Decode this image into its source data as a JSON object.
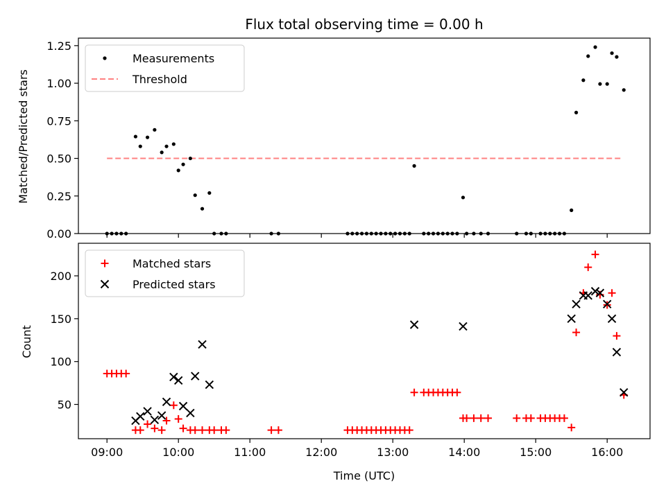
{
  "chart_data": [
    {
      "type": "scatter",
      "title": "Flux total observing time = 0.00 h",
      "xlabel": "",
      "ylabel": "Matched/Predicted stars",
      "xlim": [
        "08:36",
        "16:36"
      ],
      "ylim": [
        0,
        1.3
      ],
      "yticks": [
        "0.00",
        "0.25",
        "0.50",
        "0.75",
        "1.00",
        "1.25"
      ],
      "legend": {
        "placement": "top-left",
        "entries": [
          "Measurements",
          "Threshold"
        ]
      },
      "threshold": {
        "name": "Threshold",
        "value": 0.5,
        "x_range": [
          "09:00",
          "16:12"
        ],
        "color": "#ff8080"
      },
      "series": [
        {
          "name": "Measurements",
          "color": "#000000",
          "points": [
            [
              "09:00",
              0
            ],
            [
              "09:04",
              0
            ],
            [
              "09:08",
              0
            ],
            [
              "09:12",
              0
            ],
            [
              "09:16",
              0
            ],
            [
              "09:24",
              0.645
            ],
            [
              "09:28",
              0.58
            ],
            [
              "09:34",
              0.64
            ],
            [
              "09:40",
              0.69
            ],
            [
              "09:46",
              0.54
            ],
            [
              "09:50",
              0.58
            ],
            [
              "09:56",
              0.595
            ],
            [
              "10:00",
              0.42
            ],
            [
              "10:04",
              0.46
            ],
            [
              "10:10",
              0.5
            ],
            [
              "10:14",
              0.255
            ],
            [
              "10:20",
              0.165
            ],
            [
              "10:26",
              0.27
            ],
            [
              "10:30",
              0
            ],
            [
              "10:36",
              0
            ],
            [
              "10:40",
              0
            ],
            [
              "11:18",
              0
            ],
            [
              "11:24",
              0
            ],
            [
              "12:22",
              0
            ],
            [
              "12:26",
              0
            ],
            [
              "12:30",
              0
            ],
            [
              "12:34",
              0
            ],
            [
              "12:38",
              0
            ],
            [
              "12:42",
              0
            ],
            [
              "12:46",
              0
            ],
            [
              "12:50",
              0
            ],
            [
              "12:54",
              0
            ],
            [
              "12:58",
              0
            ],
            [
              "13:02",
              0
            ],
            [
              "13:06",
              0
            ],
            [
              "13:10",
              0
            ],
            [
              "13:14",
              0
            ],
            [
              "13:18",
              0.45
            ],
            [
              "13:26",
              0
            ],
            [
              "13:30",
              0
            ],
            [
              "13:34",
              0
            ],
            [
              "13:38",
              0
            ],
            [
              "13:42",
              0
            ],
            [
              "13:46",
              0
            ],
            [
              "13:50",
              0
            ],
            [
              "13:54",
              0
            ],
            [
              "13:59",
              0.24
            ],
            [
              "14:02",
              0
            ],
            [
              "14:08",
              0
            ],
            [
              "14:14",
              0
            ],
            [
              "14:20",
              0
            ],
            [
              "14:44",
              0
            ],
            [
              "14:52",
              0
            ],
            [
              "14:56",
              0
            ],
            [
              "15:04",
              0
            ],
            [
              "15:08",
              0
            ],
            [
              "15:12",
              0
            ],
            [
              "15:16",
              0
            ],
            [
              "15:20",
              0
            ],
            [
              "15:24",
              0
            ],
            [
              "15:30",
              0.155
            ],
            [
              "15:34",
              0.805
            ],
            [
              "15:40",
              1.02
            ],
            [
              "15:44",
              1.18
            ],
            [
              "15:50",
              1.24
            ],
            [
              "15:54",
              0.995
            ],
            [
              "16:00",
              0.995
            ],
            [
              "16:04",
              1.2
            ],
            [
              "16:08",
              1.175
            ],
            [
              "16:14",
              0.955
            ]
          ]
        }
      ]
    },
    {
      "type": "scatter",
      "title": "",
      "xlabel": "Time (UTC)",
      "ylabel": "Count",
      "xlim": [
        "08:36",
        "16:36"
      ],
      "ylim": [
        10,
        238
      ],
      "yticks": [
        "50",
        "100",
        "150",
        "200"
      ],
      "xticks": [
        "09:00",
        "10:00",
        "11:00",
        "12:00",
        "13:00",
        "14:00",
        "15:00",
        "16:00"
      ],
      "legend": {
        "placement": "top-left",
        "entries": [
          "Matched stars",
          "Predicted stars"
        ]
      },
      "series": [
        {
          "name": "Matched stars",
          "marker": "+",
          "color": "#ff0000",
          "points": [
            [
              "09:00",
              86
            ],
            [
              "09:04",
              86
            ],
            [
              "09:08",
              86
            ],
            [
              "09:12",
              86
            ],
            [
              "09:16",
              86
            ],
            [
              "09:24",
              20
            ],
            [
              "09:28",
              20
            ],
            [
              "09:34",
              27
            ],
            [
              "09:40",
              22
            ],
            [
              "09:46",
              20
            ],
            [
              "09:50",
              31
            ],
            [
              "09:56",
              49
            ],
            [
              "10:00",
              33
            ],
            [
              "10:04",
              22
            ],
            [
              "10:10",
              20
            ],
            [
              "10:14",
              20
            ],
            [
              "10:20",
              20
            ],
            [
              "10:26",
              20
            ],
            [
              "10:30",
              20
            ],
            [
              "10:36",
              20
            ],
            [
              "10:40",
              20
            ],
            [
              "11:18",
              20
            ],
            [
              "11:24",
              20
            ],
            [
              "12:22",
              20
            ],
            [
              "12:26",
              20
            ],
            [
              "12:30",
              20
            ],
            [
              "12:34",
              20
            ],
            [
              "12:38",
              20
            ],
            [
              "12:42",
              20
            ],
            [
              "12:46",
              20
            ],
            [
              "12:50",
              20
            ],
            [
              "12:54",
              20
            ],
            [
              "12:58",
              20
            ],
            [
              "13:02",
              20
            ],
            [
              "13:06",
              20
            ],
            [
              "13:10",
              20
            ],
            [
              "13:14",
              20
            ],
            [
              "13:18",
              64
            ],
            [
              "13:26",
              64
            ],
            [
              "13:30",
              64
            ],
            [
              "13:34",
              64
            ],
            [
              "13:38",
              64
            ],
            [
              "13:42",
              64
            ],
            [
              "13:46",
              64
            ],
            [
              "13:50",
              64
            ],
            [
              "13:54",
              64
            ],
            [
              "13:59",
              34
            ],
            [
              "14:02",
              34
            ],
            [
              "14:08",
              34
            ],
            [
              "14:14",
              34
            ],
            [
              "14:20",
              34
            ],
            [
              "14:44",
              34
            ],
            [
              "14:52",
              34
            ],
            [
              "14:56",
              34
            ],
            [
              "15:04",
              34
            ],
            [
              "15:08",
              34
            ],
            [
              "15:12",
              34
            ],
            [
              "15:16",
              34
            ],
            [
              "15:20",
              34
            ],
            [
              "15:24",
              34
            ],
            [
              "15:30",
              23
            ],
            [
              "15:34",
              134
            ],
            [
              "15:40",
              180
            ],
            [
              "15:44",
              210
            ],
            [
              "15:50",
              225
            ],
            [
              "15:54",
              178
            ],
            [
              "16:00",
              166
            ],
            [
              "16:04",
              180
            ],
            [
              "16:08",
              130
            ],
            [
              "16:14",
              61
            ]
          ]
        },
        {
          "name": "Predicted stars",
          "marker": "x",
          "color": "#000000",
          "points": [
            [
              "09:24",
              31
            ],
            [
              "09:28",
              36
            ],
            [
              "09:34",
              42
            ],
            [
              "09:40",
              32
            ],
            [
              "09:46",
              37
            ],
            [
              "09:50",
              53
            ],
            [
              "09:56",
              82
            ],
            [
              "10:00",
              78
            ],
            [
              "10:04",
              48
            ],
            [
              "10:10",
              40
            ],
            [
              "10:14",
              83
            ],
            [
              "10:20",
              120
            ],
            [
              "10:26",
              73
            ],
            [
              "13:18",
              143
            ],
            [
              "13:59",
              141
            ],
            [
              "15:30",
              150
            ],
            [
              "15:34",
              167
            ],
            [
              "15:40",
              177
            ],
            [
              "15:44",
              177
            ],
            [
              "15:50",
              182
            ],
            [
              "15:54",
              180
            ],
            [
              "16:00",
              167
            ],
            [
              "16:04",
              150
            ],
            [
              "16:08",
              111
            ],
            [
              "16:14",
              64
            ]
          ]
        }
      ]
    }
  ]
}
